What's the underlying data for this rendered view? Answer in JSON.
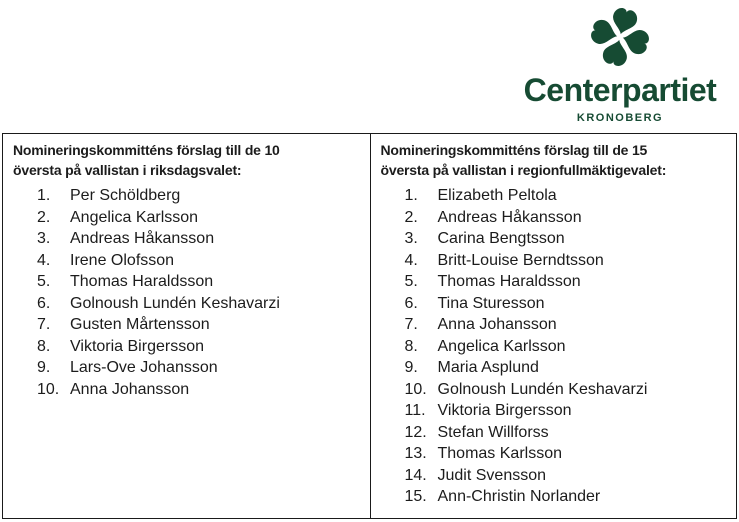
{
  "colors": {
    "brand-green": "#164b33",
    "border": "#1a1a1a",
    "text": "#1c1c1c"
  },
  "logo": {
    "brand": "Centerpartiet",
    "region": "KRONOBERG",
    "clover_icon": "four-heart-clover-icon"
  },
  "columns": [
    {
      "title": "Nomineringskommitténs förslag till de 10\növersta på vallistan i riksdagsvalet:",
      "items": [
        {
          "num": "1.",
          "name": "Per Schöldberg"
        },
        {
          "num": "2.",
          "name": "Angelica Karlsson"
        },
        {
          "num": "3.",
          "name": "Andreas Håkansson"
        },
        {
          "num": "4.",
          "name": "Irene Olofsson"
        },
        {
          "num": "5.",
          "name": "Thomas Haraldsson"
        },
        {
          "num": "6.",
          "name": "Golnoush Lundén Keshavarzi"
        },
        {
          "num": "7.",
          "name": "Gusten Mårtensson"
        },
        {
          "num": "8.",
          "name": "Viktoria Birgersson"
        },
        {
          "num": "9.",
          "name": "Lars-Ove Johansson"
        },
        {
          "num": "10.",
          "name": "Anna Johansson"
        }
      ]
    },
    {
      "title": "Nomineringskommitténs förslag till de 15\növersta på vallistan i regionfullmäktigevalet:",
      "items": [
        {
          "num": "1.",
          "name": "Elizabeth Peltola"
        },
        {
          "num": "2.",
          "name": "Andreas Håkansson"
        },
        {
          "num": "3.",
          "name": "Carina Bengtsson"
        },
        {
          "num": "4.",
          "name": "Britt-Louise Berndtsson"
        },
        {
          "num": "5.",
          "name": "Thomas Haraldsson"
        },
        {
          "num": "6.",
          "name": "Tina Sturesson"
        },
        {
          "num": "7.",
          "name": "Anna Johansson"
        },
        {
          "num": "8.",
          "name": "Angelica Karlsson"
        },
        {
          "num": "9.",
          "name": "Maria Asplund"
        },
        {
          "num": "10.",
          "name": "Golnoush Lundén Keshavarzi"
        },
        {
          "num": "11.",
          "name": "Viktoria Birgersson"
        },
        {
          "num": "12.",
          "name": "Stefan Willforss"
        },
        {
          "num": "13.",
          "name": "Thomas Karlsson"
        },
        {
          "num": "14.",
          "name": "Judit Svensson"
        },
        {
          "num": "15.",
          "name": "Ann-Christin Norlander"
        }
      ]
    }
  ]
}
